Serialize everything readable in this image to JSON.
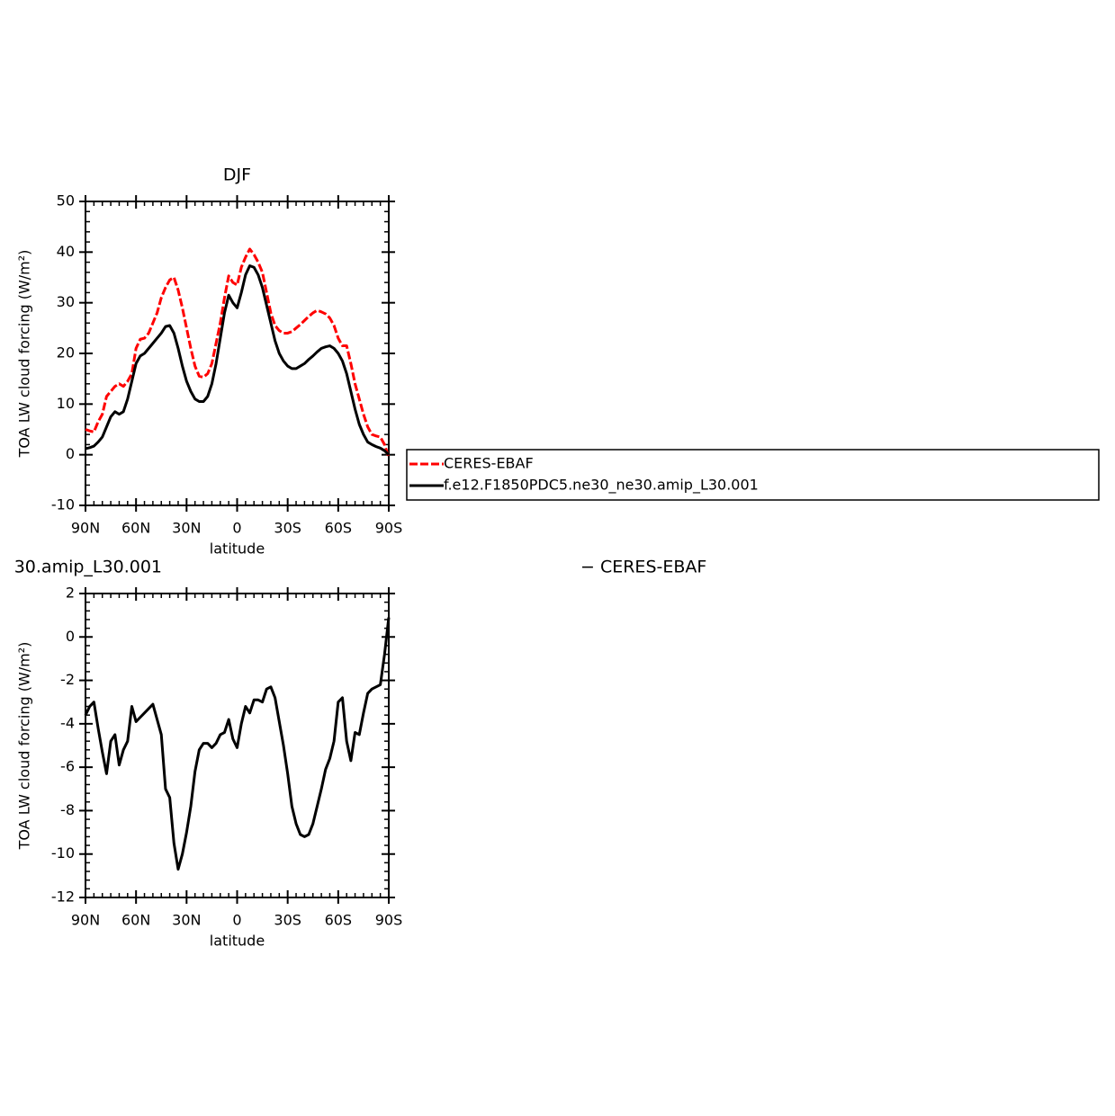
{
  "chart_data": [
    {
      "type": "line",
      "title": "DJF",
      "xlabel": "latitude",
      "ylabel": "TOA LW cloud forcing (W/m²)",
      "x": [
        90,
        87.5,
        85,
        82.5,
        80,
        77.5,
        75,
        72.5,
        70,
        67.5,
        65,
        62.5,
        60,
        57.5,
        55,
        52.5,
        50,
        47.5,
        45,
        42.5,
        40,
        37.5,
        35,
        32.5,
        30,
        27.5,
        25,
        22.5,
        20,
        17.5,
        15,
        12.5,
        10,
        7.5,
        5,
        2.5,
        0,
        -2.5,
        -5,
        -7.5,
        -10,
        -12.5,
        -15,
        -17.5,
        -20,
        -22.5,
        -25,
        -27.5,
        -30,
        -32.5,
        -35,
        -37.5,
        -40,
        -42.5,
        -45,
        -47.5,
        -50,
        -52.5,
        -55,
        -57.5,
        -60,
        -62.5,
        -65,
        -67.5,
        -70,
        -72.5,
        -75,
        -77.5,
        -80,
        -82.5,
        -85,
        -87.5,
        -90
      ],
      "series": [
        {
          "name": "CERES-EBAF",
          "color": "#ff0000",
          "dash": true,
          "values": [
            5,
            4.7,
            4.5,
            6.5,
            8,
            11.5,
            12.5,
            13.5,
            14,
            13.5,
            14.5,
            16,
            21,
            22.8,
            23,
            24,
            26,
            28,
            31,
            33,
            34.5,
            35,
            32.5,
            29,
            25,
            21,
            17.5,
            15.5,
            15.3,
            16,
            18,
            22,
            26,
            31,
            35.3,
            34,
            33.5,
            37,
            39,
            40.6,
            39.5,
            38,
            36,
            32,
            28,
            25.5,
            24.5,
            24,
            24,
            24.3,
            25,
            25.7,
            26.5,
            27.3,
            28,
            28.5,
            28.2,
            27.8,
            27,
            25.5,
            23,
            21.5,
            21.5,
            18,
            14,
            11,
            8,
            5.5,
            4,
            3.7,
            3.5,
            2,
            -0.5
          ]
        },
        {
          "name": "f.e12.F1850PDC5.ne30_ne30.amip_L30.001",
          "color": "#000000",
          "dash": false,
          "values": [
            1.2,
            1.4,
            1.7,
            2.5,
            3.5,
            5.5,
            7.5,
            8.5,
            8,
            8.5,
            11,
            14.5,
            18,
            19.5,
            20,
            21,
            22,
            23,
            24,
            25.3,
            25.5,
            24,
            21,
            17.5,
            14.5,
            12.5,
            11,
            10.5,
            10.5,
            11.5,
            14,
            18,
            23,
            28,
            31.5,
            30,
            29,
            32,
            35.5,
            37.3,
            37,
            35.5,
            33,
            29.5,
            26,
            22.5,
            20,
            18.5,
            17.5,
            17,
            17,
            17.5,
            18,
            18.8,
            19.5,
            20.3,
            21,
            21.3,
            21.5,
            21,
            20,
            18.5,
            16,
            12.5,
            9,
            6,
            4,
            2.5,
            2,
            1.6,
            1.3,
            0.8,
            0
          ]
        }
      ],
      "xlim": [
        90,
        -90
      ],
      "xticks": [
        {
          "value": 90,
          "label": "90N"
        },
        {
          "value": 60,
          "label": "60N"
        },
        {
          "value": 30,
          "label": "30N"
        },
        0,
        {
          "value": -30,
          "label": "30S"
        },
        {
          "value": -60,
          "label": "60S"
        },
        {
          "value": -90,
          "label": "90S"
        }
      ],
      "ylim": [
        -10,
        50
      ],
      "yticks": [
        -10,
        0,
        10,
        20,
        30,
        40,
        50
      ],
      "legend": "right"
    },
    {
      "type": "line",
      "title_parts": [
        "30.amip_L30.001",
        "− CERES-EBAF"
      ],
      "xlabel": "latitude",
      "ylabel": "TOA LW cloud forcing (W/m²)",
      "x": [
        90,
        87.5,
        85,
        82.5,
        80,
        77.5,
        75,
        72.5,
        70,
        67.5,
        65,
        62.5,
        60,
        57.5,
        55,
        52.5,
        50,
        47.5,
        45,
        42.5,
        40,
        37.5,
        35,
        32.5,
        30,
        27.5,
        25,
        22.5,
        20,
        17.5,
        15,
        12.5,
        10,
        7.5,
        5,
        2.5,
        0,
        -2.5,
        -5,
        -7.5,
        -10,
        -12.5,
        -15,
        -17.5,
        -20,
        -22.5,
        -25,
        -27.5,
        -30,
        -32.5,
        -35,
        -37.5,
        -40,
        -42.5,
        -45,
        -47.5,
        -50,
        -52.5,
        -55,
        -57.5,
        -60,
        -62.5,
        -65,
        -67.5,
        -70,
        -72.5,
        -75,
        -77.5,
        -80,
        -82.5,
        -85,
        -87.5,
        -90
      ],
      "series": [
        {
          "color": "#000000",
          "dash": false,
          "values": [
            -3.6,
            -3.2,
            -3,
            -4.2,
            -5.3,
            -6.3,
            -4.8,
            -4.5,
            -5.9,
            -5.2,
            -4.8,
            -3.2,
            -3.9,
            -3.7,
            -3.5,
            -3.3,
            -3.1,
            -3.8,
            -4.5,
            -7,
            -7.4,
            -9.5,
            -10.7,
            -10,
            -9,
            -7.8,
            -6.2,
            -5.2,
            -4.9,
            -4.9,
            -5.1,
            -4.9,
            -4.5,
            -4.4,
            -3.8,
            -4.7,
            -5.1,
            -4,
            -3.2,
            -3.5,
            -2.9,
            -2.9,
            -3,
            -2.4,
            -2.3,
            -2.8,
            -3.9,
            -5,
            -6.3,
            -7.8,
            -8.6,
            -9.1,
            -9.2,
            -9.1,
            -8.6,
            -7.8,
            -7,
            -6.1,
            -5.6,
            -4.8,
            -3,
            -2.8,
            -4.8,
            -5.7,
            -4.4,
            -4.5,
            -3.5,
            -2.6,
            -2.4,
            -2.3,
            -2.2,
            -0.8,
            0.9
          ]
        }
      ],
      "xlim": [
        90,
        -90
      ],
      "xticks": [
        {
          "value": 90,
          "label": "90N"
        },
        {
          "value": 60,
          "label": "60N"
        },
        {
          "value": 30,
          "label": "30N"
        },
        0,
        {
          "value": -30,
          "label": "30S"
        },
        {
          "value": -60,
          "label": "60S"
        },
        {
          "value": -90,
          "label": "90S"
        }
      ],
      "ylim": [
        -12,
        2
      ],
      "yticks": [
        -12,
        -10,
        -8,
        -6,
        -4,
        -2,
        0,
        2
      ]
    }
  ]
}
